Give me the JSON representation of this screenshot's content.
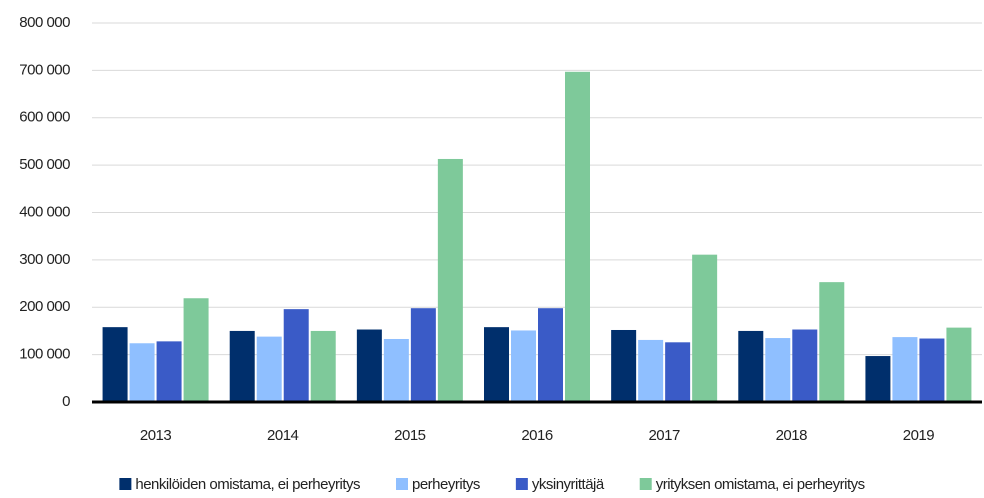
{
  "chart_data": {
    "type": "bar",
    "categories": [
      "2013",
      "2014",
      "2015",
      "2016",
      "2017",
      "2018",
      "2019"
    ],
    "series": [
      {
        "name": "henkilöiden omistama, ei perheyritys",
        "color": "#002f6c",
        "values": [
          158000,
          150000,
          153000,
          158000,
          152000,
          150000,
          97000
        ]
      },
      {
        "name": "perheyritys",
        "color": "#8fbfff",
        "values": [
          124000,
          138000,
          133000,
          151000,
          131000,
          135000,
          137000
        ]
      },
      {
        "name": "yksinyrittäjä",
        "color": "#3a5bc7",
        "values": [
          128000,
          196000,
          198000,
          198000,
          126000,
          153000,
          134000
        ]
      },
      {
        "name": "yrityksen omistama, ei perheyritys",
        "color": "#7ec99a",
        "values": [
          219000,
          150000,
          513000,
          697000,
          311000,
          253000,
          157000
        ]
      }
    ],
    "ylim": [
      0,
      800000
    ],
    "yticks": [
      0,
      {
        "value": 100000,
        "label": "100 000"
      },
      {
        "value": 200000,
        "label": "200 000"
      },
      {
        "value": 300000,
        "label": "300 000"
      },
      {
        "value": 400000,
        "label": "400 000"
      },
      {
        "value": 500000,
        "label": "500 000"
      },
      {
        "value": 600000,
        "label": "600 000"
      },
      {
        "value": 700000,
        "label": "700 000"
      },
      {
        "value": 800000,
        "label": "800 000"
      }
    ],
    "grid": true,
    "legend": "bottom"
  }
}
